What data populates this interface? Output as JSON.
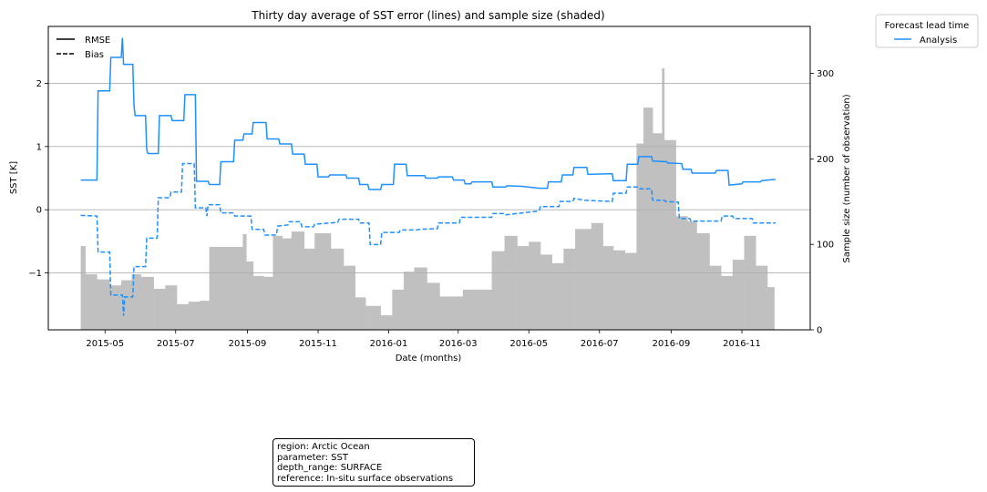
{
  "chart_data": {
    "type": "line",
    "title": "Thirty day average of SST error (lines) and sample size (shaded)",
    "xlabel": "Date (months)",
    "ylabel": "SST [K]",
    "y2label": "Sample size (number of observation)",
    "ylim": [
      -1.9,
      2.9
    ],
    "yticks": [
      -1,
      0,
      1,
      2
    ],
    "y2lim": [
      0,
      355
    ],
    "y2ticks": [
      0,
      100,
      200,
      300
    ],
    "xlim": [
      "2015-03-13",
      "2016-12-30"
    ],
    "xticks": [
      "2015-05",
      "2015-07",
      "2015-09",
      "2015-11",
      "2016-01",
      "2016-03",
      "2016-05",
      "2016-07",
      "2016-09",
      "2016-11"
    ],
    "grid": "horizontal",
    "colors": {
      "line": "#1e90ff",
      "bars": "#c0c0c0",
      "grid": "#b0b0b0"
    },
    "style_legend": {
      "placement": "top-left",
      "entries": [
        {
          "label": "RMSE",
          "style": "solid"
        },
        {
          "label": "Bias",
          "style": "dashed"
        }
      ]
    },
    "series_legend": {
      "title": "Forecast lead time",
      "placement": "outside-top-right",
      "entries": [
        {
          "label": "Analysis",
          "color": "#1e90ff"
        }
      ]
    },
    "series": [
      {
        "name": "Analysis",
        "metric": "RMSE",
        "points": [
          [
            "2015-04-10",
            0.47
          ],
          [
            "2015-04-24",
            0.47
          ],
          [
            "2015-04-25",
            1.88
          ],
          [
            "2015-05-05",
            1.88
          ],
          [
            "2015-05-06",
            2.41
          ],
          [
            "2015-05-15",
            2.41
          ],
          [
            "2015-05-16",
            2.72
          ],
          [
            "2015-05-17",
            2.3
          ],
          [
            "2015-05-25",
            2.3
          ],
          [
            "2015-05-26",
            1.65
          ],
          [
            "2015-05-27",
            1.49
          ],
          [
            "2015-06-05",
            1.49
          ],
          [
            "2015-06-06",
            0.95
          ],
          [
            "2015-06-07",
            0.89
          ],
          [
            "2015-06-16",
            0.89
          ],
          [
            "2015-06-17",
            1.49
          ],
          [
            "2015-06-27",
            1.49
          ],
          [
            "2015-06-28",
            1.41
          ],
          [
            "2015-07-08",
            1.41
          ],
          [
            "2015-07-09",
            1.82
          ],
          [
            "2015-07-18",
            1.82
          ],
          [
            "2015-07-19",
            0.45
          ],
          [
            "2015-07-29",
            0.45
          ],
          [
            "2015-07-30",
            0.4
          ],
          [
            "2015-08-08",
            0.4
          ],
          [
            "2015-08-09",
            0.76
          ],
          [
            "2015-08-20",
            0.76
          ],
          [
            "2015-08-21",
            1.1
          ],
          [
            "2015-08-28",
            1.1
          ],
          [
            "2015-08-29",
            1.2
          ],
          [
            "2015-09-05",
            1.2
          ],
          [
            "2015-09-06",
            1.38
          ],
          [
            "2015-09-17",
            1.38
          ],
          [
            "2015-09-18",
            1.12
          ],
          [
            "2015-09-28",
            1.12
          ],
          [
            "2015-09-29",
            1.04
          ],
          [
            "2015-10-09",
            1.04
          ],
          [
            "2015-10-10",
            0.88
          ],
          [
            "2015-10-20",
            0.88
          ],
          [
            "2015-10-21",
            0.72
          ],
          [
            "2015-10-31",
            0.72
          ],
          [
            "2015-11-01",
            0.52
          ],
          [
            "2015-11-10",
            0.52
          ],
          [
            "2015-11-11",
            0.55
          ],
          [
            "2015-11-25",
            0.55
          ],
          [
            "2015-11-26",
            0.5
          ],
          [
            "2015-12-06",
            0.5
          ],
          [
            "2015-12-07",
            0.4
          ],
          [
            "2015-12-14",
            0.4
          ],
          [
            "2015-12-15",
            0.32
          ],
          [
            "2015-12-25",
            0.32
          ],
          [
            "2015-12-26",
            0.4
          ],
          [
            "2016-01-05",
            0.4
          ],
          [
            "2016-01-06",
            0.72
          ],
          [
            "2016-01-16",
            0.72
          ],
          [
            "2016-01-17",
            0.54
          ],
          [
            "2016-02-01",
            0.54
          ],
          [
            "2016-02-02",
            0.5
          ],
          [
            "2016-02-12",
            0.5
          ],
          [
            "2016-02-13",
            0.52
          ],
          [
            "2016-02-25",
            0.52
          ],
          [
            "2016-02-26",
            0.47
          ],
          [
            "2016-03-06",
            0.47
          ],
          [
            "2016-03-07",
            0.41
          ],
          [
            "2016-03-12",
            0.41
          ],
          [
            "2016-03-13",
            0.44
          ],
          [
            "2016-03-30",
            0.44
          ],
          [
            "2016-03-31",
            0.36
          ],
          [
            "2016-04-11",
            0.36
          ],
          [
            "2016-04-12",
            0.38
          ],
          [
            "2016-04-25",
            0.37
          ],
          [
            "2016-05-10",
            0.34
          ],
          [
            "2016-05-17",
            0.34
          ],
          [
            "2016-05-18",
            0.44
          ],
          [
            "2016-05-29",
            0.44
          ],
          [
            "2016-05-30",
            0.55
          ],
          [
            "2016-06-08",
            0.55
          ],
          [
            "2016-06-09",
            0.67
          ],
          [
            "2016-06-20",
            0.67
          ],
          [
            "2016-06-21",
            0.56
          ],
          [
            "2016-07-12",
            0.57
          ],
          [
            "2016-07-13",
            0.46
          ],
          [
            "2016-07-24",
            0.46
          ],
          [
            "2016-07-25",
            0.72
          ],
          [
            "2016-08-03",
            0.72
          ],
          [
            "2016-08-04",
            0.84
          ],
          [
            "2016-08-15",
            0.84
          ],
          [
            "2016-08-16",
            0.77
          ],
          [
            "2016-08-28",
            0.76
          ],
          [
            "2016-08-29",
            0.74
          ],
          [
            "2016-09-10",
            0.73
          ],
          [
            "2016-09-11",
            0.64
          ],
          [
            "2016-09-18",
            0.64
          ],
          [
            "2016-09-19",
            0.58
          ],
          [
            "2016-10-09",
            0.58
          ],
          [
            "2016-10-10",
            0.62
          ],
          [
            "2016-10-20",
            0.62
          ],
          [
            "2016-10-21",
            0.39
          ],
          [
            "2016-11-01",
            0.41
          ],
          [
            "2016-11-02",
            0.44
          ],
          [
            "2016-11-17",
            0.44
          ],
          [
            "2016-11-18",
            0.46
          ],
          [
            "2016-11-30",
            0.48
          ]
        ]
      },
      {
        "name": "Analysis",
        "metric": "Bias",
        "points": [
          [
            "2015-04-10",
            -0.09
          ],
          [
            "2015-04-24",
            -0.1
          ],
          [
            "2015-04-25",
            -0.67
          ],
          [
            "2015-05-05",
            -0.67
          ],
          [
            "2015-05-06",
            -1.35
          ],
          [
            "2015-05-16",
            -1.35
          ],
          [
            "2015-05-17",
            -1.68
          ],
          [
            "2015-05-18",
            -1.38
          ],
          [
            "2015-05-25",
            -1.38
          ],
          [
            "2015-05-26",
            -0.9
          ],
          [
            "2015-06-05",
            -0.9
          ],
          [
            "2015-06-06",
            -0.45
          ],
          [
            "2015-06-15",
            -0.45
          ],
          [
            "2015-06-16",
            0.19
          ],
          [
            "2015-06-26",
            0.19
          ],
          [
            "2015-06-27",
            0.28
          ],
          [
            "2015-07-06",
            0.28
          ],
          [
            "2015-07-07",
            0.73
          ],
          [
            "2015-07-17",
            0.73
          ],
          [
            "2015-07-18",
            0.03
          ],
          [
            "2015-07-27",
            0.03
          ],
          [
            "2015-07-28",
            -0.1
          ],
          [
            "2015-07-29",
            0.08
          ],
          [
            "2015-08-08",
            0.08
          ],
          [
            "2015-08-09",
            -0.05
          ],
          [
            "2015-08-20",
            -0.05
          ],
          [
            "2015-08-21",
            -0.1
          ],
          [
            "2015-09-04",
            -0.1
          ],
          [
            "2015-09-05",
            -0.31
          ],
          [
            "2015-09-15",
            -0.31
          ],
          [
            "2015-09-16",
            -0.4
          ],
          [
            "2015-09-26",
            -0.4
          ],
          [
            "2015-09-27",
            -0.26
          ],
          [
            "2015-10-06",
            -0.24
          ],
          [
            "2015-10-07",
            -0.19
          ],
          [
            "2015-10-17",
            -0.19
          ],
          [
            "2015-10-18",
            -0.27
          ],
          [
            "2015-10-28",
            -0.27
          ],
          [
            "2015-10-29",
            -0.23
          ],
          [
            "2015-11-18",
            -0.2
          ],
          [
            "2015-11-19",
            -0.15
          ],
          [
            "2015-12-06",
            -0.15
          ],
          [
            "2015-12-07",
            -0.21
          ],
          [
            "2015-12-15",
            -0.21
          ],
          [
            "2015-12-16",
            -0.55
          ],
          [
            "2015-12-25",
            -0.55
          ],
          [
            "2015-12-26",
            -0.36
          ],
          [
            "2016-01-10",
            -0.36
          ],
          [
            "2016-01-11",
            -0.32
          ],
          [
            "2016-01-26",
            -0.32
          ],
          [
            "2016-01-27",
            -0.31
          ],
          [
            "2016-02-12",
            -0.3
          ],
          [
            "2016-02-13",
            -0.21
          ],
          [
            "2016-03-02",
            -0.21
          ],
          [
            "2016-03-03",
            -0.12
          ],
          [
            "2016-03-30",
            -0.12
          ],
          [
            "2016-03-31",
            -0.06
          ],
          [
            "2016-04-10",
            -0.06
          ],
          [
            "2016-04-11",
            -0.08
          ],
          [
            "2016-05-10",
            -0.02
          ],
          [
            "2016-05-11",
            0.05
          ],
          [
            "2016-05-27",
            0.05
          ],
          [
            "2016-05-28",
            0.13
          ],
          [
            "2016-06-08",
            0.13
          ],
          [
            "2016-06-09",
            0.18
          ],
          [
            "2016-06-18",
            0.15
          ],
          [
            "2016-07-12",
            0.13
          ],
          [
            "2016-07-13",
            0.26
          ],
          [
            "2016-07-24",
            0.26
          ],
          [
            "2016-07-25",
            0.36
          ],
          [
            "2016-08-04",
            0.36
          ],
          [
            "2016-08-05",
            0.33
          ],
          [
            "2016-08-15",
            0.33
          ],
          [
            "2016-08-16",
            0.15
          ],
          [
            "2016-08-26",
            0.15
          ],
          [
            "2016-08-27",
            0.13
          ],
          [
            "2016-09-07",
            0.12
          ],
          [
            "2016-09-08",
            -0.14
          ],
          [
            "2016-09-17",
            -0.14
          ],
          [
            "2016-09-18",
            -0.18
          ],
          [
            "2016-10-14",
            -0.18
          ],
          [
            "2016-10-15",
            -0.1
          ],
          [
            "2016-10-24",
            -0.1
          ],
          [
            "2016-10-25",
            -0.14
          ],
          [
            "2016-11-10",
            -0.14
          ],
          [
            "2016-11-11",
            -0.21
          ],
          [
            "2016-11-30",
            -0.21
          ]
        ]
      },
      {
        "name": "Analysis",
        "metric": "Sample size",
        "type": "bar",
        "axis": "right",
        "bars": [
          [
            "2015-04-10",
            98
          ],
          [
            "2015-04-14",
            65
          ],
          [
            "2015-04-24",
            59
          ],
          [
            "2015-05-05",
            53
          ],
          [
            "2015-05-06",
            52
          ],
          [
            "2015-05-15",
            58
          ],
          [
            "2015-05-24",
            65
          ],
          [
            "2015-06-01",
            62
          ],
          [
            "2015-06-12",
            48
          ],
          [
            "2015-06-22",
            52
          ],
          [
            "2015-07-02",
            30
          ],
          [
            "2015-07-12",
            33
          ],
          [
            "2015-07-22",
            34
          ],
          [
            "2015-07-30",
            97
          ],
          [
            "2015-08-28",
            112
          ],
          [
            "2015-08-31",
            80
          ],
          [
            "2015-09-06",
            63
          ],
          [
            "2015-09-15",
            62
          ],
          [
            "2015-09-23",
            110
          ],
          [
            "2015-10-01",
            107
          ],
          [
            "2015-10-09",
            115
          ],
          [
            "2015-10-20",
            95
          ],
          [
            "2015-10-29",
            113
          ],
          [
            "2015-11-12",
            95
          ],
          [
            "2015-11-23",
            75
          ],
          [
            "2015-12-03",
            38
          ],
          [
            "2015-12-12",
            28
          ],
          [
            "2015-12-25",
            17
          ],
          [
            "2016-01-04",
            47
          ],
          [
            "2016-01-14",
            68
          ],
          [
            "2016-01-23",
            73
          ],
          [
            "2016-02-03",
            55
          ],
          [
            "2016-02-14",
            39
          ],
          [
            "2016-03-05",
            47
          ],
          [
            "2016-03-30",
            92
          ],
          [
            "2016-04-10",
            110
          ],
          [
            "2016-04-21",
            98
          ],
          [
            "2016-05-01",
            103
          ],
          [
            "2016-05-11",
            88
          ],
          [
            "2016-05-21",
            78
          ],
          [
            "2016-05-31",
            95
          ],
          [
            "2016-06-10",
            118
          ],
          [
            "2016-06-24",
            125
          ],
          [
            "2016-07-04",
            98
          ],
          [
            "2016-07-13",
            93
          ],
          [
            "2016-07-23",
            90
          ],
          [
            "2016-08-02",
            218
          ],
          [
            "2016-08-08",
            260
          ],
          [
            "2016-08-16",
            230
          ],
          [
            "2016-08-24",
            306
          ],
          [
            "2016-08-26",
            222
          ],
          [
            "2016-09-05",
            133
          ],
          [
            "2016-09-15",
            127
          ],
          [
            "2016-09-23",
            113
          ],
          [
            "2016-10-04",
            75
          ],
          [
            "2016-10-14",
            63
          ],
          [
            "2016-10-24",
            82
          ],
          [
            "2016-11-03",
            110
          ],
          [
            "2016-11-13",
            75
          ],
          [
            "2016-11-23",
            50
          ]
        ],
        "bars_end": "2016-11-29"
      }
    ]
  },
  "info_box": {
    "lines": [
      "region: Arctic Ocean",
      "parameter: SST",
      "depth_range: SURFACE",
      "reference: In-situ surface observations"
    ]
  }
}
